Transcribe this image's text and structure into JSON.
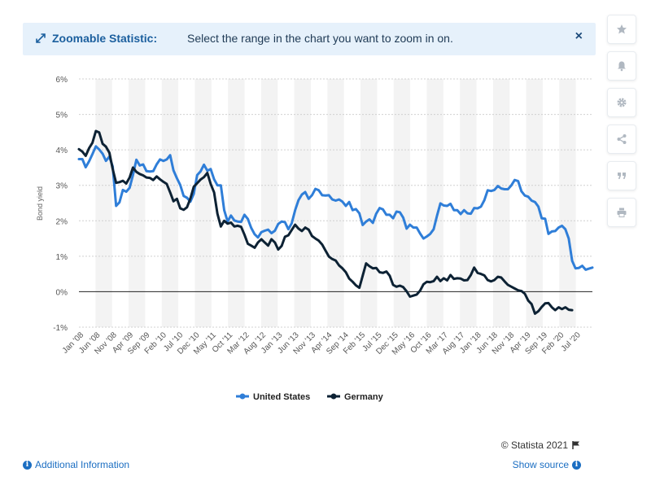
{
  "banner": {
    "title": "Zoomable Statistic:",
    "text": "Select the range in the chart you want to zoom in on.",
    "close": "×"
  },
  "sidebar": {
    "items": [
      {
        "name": "star-icon"
      },
      {
        "name": "bell-icon"
      },
      {
        "name": "gear-icon"
      },
      {
        "name": "share-icon"
      },
      {
        "name": "quote-icon"
      },
      {
        "name": "print-icon"
      }
    ]
  },
  "footer": {
    "credit": "© Statista 2021",
    "additional": "Additional Information",
    "source": "Show source"
  },
  "colors": {
    "us": "#2f7ed8",
    "germany": "#0d2234"
  },
  "chart_data": {
    "type": "line",
    "ylabel": "Bond yield",
    "ylim": [
      -1,
      6
    ],
    "yticks": [
      -1,
      0,
      1,
      2,
      3,
      4,
      5,
      6
    ],
    "ytick_labels": [
      "-1%",
      "0%",
      "1%",
      "2%",
      "3%",
      "4%",
      "5%",
      "6%"
    ],
    "x_start": "Jan '08",
    "x_end": "Oct '20",
    "xtick_labels": [
      "Jan '08",
      "Jun '08",
      "Nov '08",
      "Apr '09",
      "Sep '09",
      "Feb '10",
      "Jul '10",
      "Dec '10",
      "May '11",
      "Oct '11",
      "Mar '12",
      "Aug '12",
      "Jan '13",
      "Jun '13",
      "Nov '13",
      "Apr '14",
      "Sep '14",
      "Feb '15",
      "Jul '15",
      "Dec '15",
      "May '16",
      "Oct '16",
      "Mar '17",
      "Aug '17",
      "Jan '18",
      "Jun '18",
      "Nov '18",
      "Apr '19",
      "Sep '19",
      "Feb '20",
      "Jul '20"
    ],
    "legend_position": "bottom-center",
    "grid": true,
    "series": [
      {
        "name": "United States",
        "values": [
          3.74,
          3.74,
          3.51,
          3.68,
          3.88,
          4.1,
          4.01,
          3.89,
          3.69,
          3.81,
          3.53,
          2.42,
          2.52,
          2.87,
          2.82,
          2.93,
          3.29,
          3.72,
          3.56,
          3.59,
          3.4,
          3.39,
          3.4,
          3.59,
          3.73,
          3.69,
          3.73,
          3.85,
          3.42,
          3.2,
          3.01,
          2.7,
          2.65,
          2.54,
          2.76,
          3.29,
          3.39,
          3.58,
          3.41,
          3.46,
          3.17,
          3.0,
          3.0,
          2.3,
          1.98,
          2.15,
          2.01,
          1.98,
          1.97,
          2.17,
          2.05,
          1.8,
          1.62,
          1.53,
          1.68,
          1.72,
          1.75,
          1.65,
          1.72,
          1.91,
          1.98,
          1.96,
          1.76,
          1.93,
          2.3,
          2.58,
          2.74,
          2.81,
          2.62,
          2.72,
          2.9,
          2.86,
          2.72,
          2.71,
          2.72,
          2.6,
          2.57,
          2.6,
          2.54,
          2.42,
          2.53,
          2.3,
          2.33,
          2.21,
          1.88,
          1.98,
          2.04,
          1.94,
          2.2,
          2.36,
          2.32,
          2.17,
          2.17,
          2.07,
          2.26,
          2.24,
          2.09,
          1.78,
          1.89,
          1.81,
          1.81,
          1.64,
          1.5,
          1.56,
          1.63,
          1.76,
          2.14,
          2.49,
          2.43,
          2.42,
          2.48,
          2.3,
          2.3,
          2.19,
          2.3,
          2.21,
          2.2,
          2.36,
          2.35,
          2.4,
          2.58,
          2.86,
          2.84,
          2.87,
          2.98,
          2.91,
          2.89,
          2.89,
          3.0,
          3.15,
          3.12,
          2.83,
          2.71,
          2.68,
          2.57,
          2.53,
          2.4,
          2.07,
          2.06,
          1.63,
          1.7,
          1.71,
          1.81,
          1.86,
          1.76,
          1.5,
          0.87,
          0.66,
          0.67,
          0.73,
          0.62,
          0.65,
          0.68
        ]
      },
      {
        "name": "Germany",
        "values": [
          4.02,
          3.95,
          3.83,
          4.05,
          4.2,
          4.53,
          4.49,
          4.17,
          4.09,
          3.92,
          3.46,
          3.07,
          3.09,
          3.13,
          3.05,
          3.22,
          3.5,
          3.38,
          3.32,
          3.28,
          3.22,
          3.21,
          3.15,
          3.25,
          3.17,
          3.1,
          3.04,
          2.8,
          2.55,
          2.62,
          2.35,
          2.31,
          2.38,
          2.63,
          2.96,
          3.06,
          3.16,
          3.23,
          3.35,
          3.04,
          2.8,
          2.2,
          1.84,
          2.0,
          1.92,
          1.95,
          1.84,
          1.86,
          1.83,
          1.61,
          1.35,
          1.3,
          1.24,
          1.39,
          1.48,
          1.39,
          1.3,
          1.48,
          1.39,
          1.19,
          1.29,
          1.55,
          1.59,
          1.74,
          1.89,
          1.78,
          1.71,
          1.81,
          1.75,
          1.57,
          1.5,
          1.44,
          1.33,
          1.16,
          0.99,
          0.92,
          0.88,
          0.74,
          0.66,
          0.55,
          0.37,
          0.28,
          0.18,
          0.11,
          0.45,
          0.8,
          0.72,
          0.66,
          0.67,
          0.55,
          0.53,
          0.57,
          0.45,
          0.19,
          0.14,
          0.17,
          0.13,
          0.01,
          -0.14,
          -0.11,
          -0.08,
          0.03,
          0.21,
          0.28,
          0.27,
          0.3,
          0.42,
          0.3,
          0.38,
          0.32,
          0.47,
          0.36,
          0.38,
          0.37,
          0.32,
          0.33,
          0.47,
          0.68,
          0.53,
          0.5,
          0.46,
          0.33,
          0.29,
          0.33,
          0.42,
          0.4,
          0.29,
          0.19,
          0.14,
          0.09,
          0.04,
          0.02,
          -0.06,
          -0.25,
          -0.35,
          -0.62,
          -0.55,
          -0.43,
          -0.33,
          -0.32,
          -0.44,
          -0.52,
          -0.44,
          -0.49,
          -0.44,
          -0.51,
          -0.52
        ]
      }
    ]
  }
}
